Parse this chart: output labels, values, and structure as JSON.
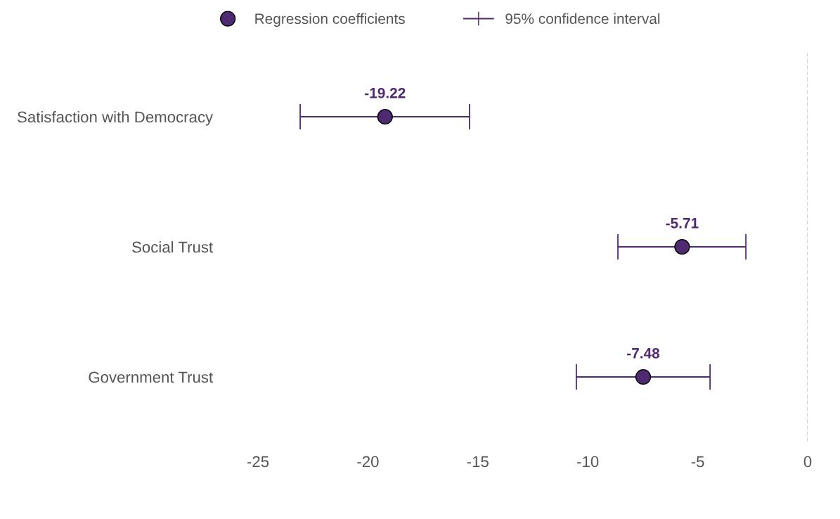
{
  "chart_data": {
    "type": "scatter",
    "orientation": "horizontal",
    "categories": [
      "Satisfaction with Democracy",
      "Social Trust",
      "Government Trust"
    ],
    "series": [
      {
        "name": "Regression coefficients",
        "color": "#4f2a73",
        "values": [
          -19.22,
          -5.71,
          -7.48
        ],
        "errors": [
          [
            -23.08,
            -15.38
          ],
          [
            -8.63,
            -2.81
          ],
          [
            -10.52,
            -4.44
          ]
        ]
      }
    ],
    "data_labels": true,
    "marker": "circle",
    "xlim": [
      -25,
      0
    ],
    "xticks": [
      -25,
      -20,
      -15,
      -10,
      -5,
      0
    ],
    "ref_lines": [
      {
        "axis": "x",
        "value": 0,
        "color": "#cccccc",
        "line_style": "dashed"
      }
    ],
    "annotations": [
      "95% confidence interval"
    ],
    "legend": "top",
    "grid": false
  }
}
